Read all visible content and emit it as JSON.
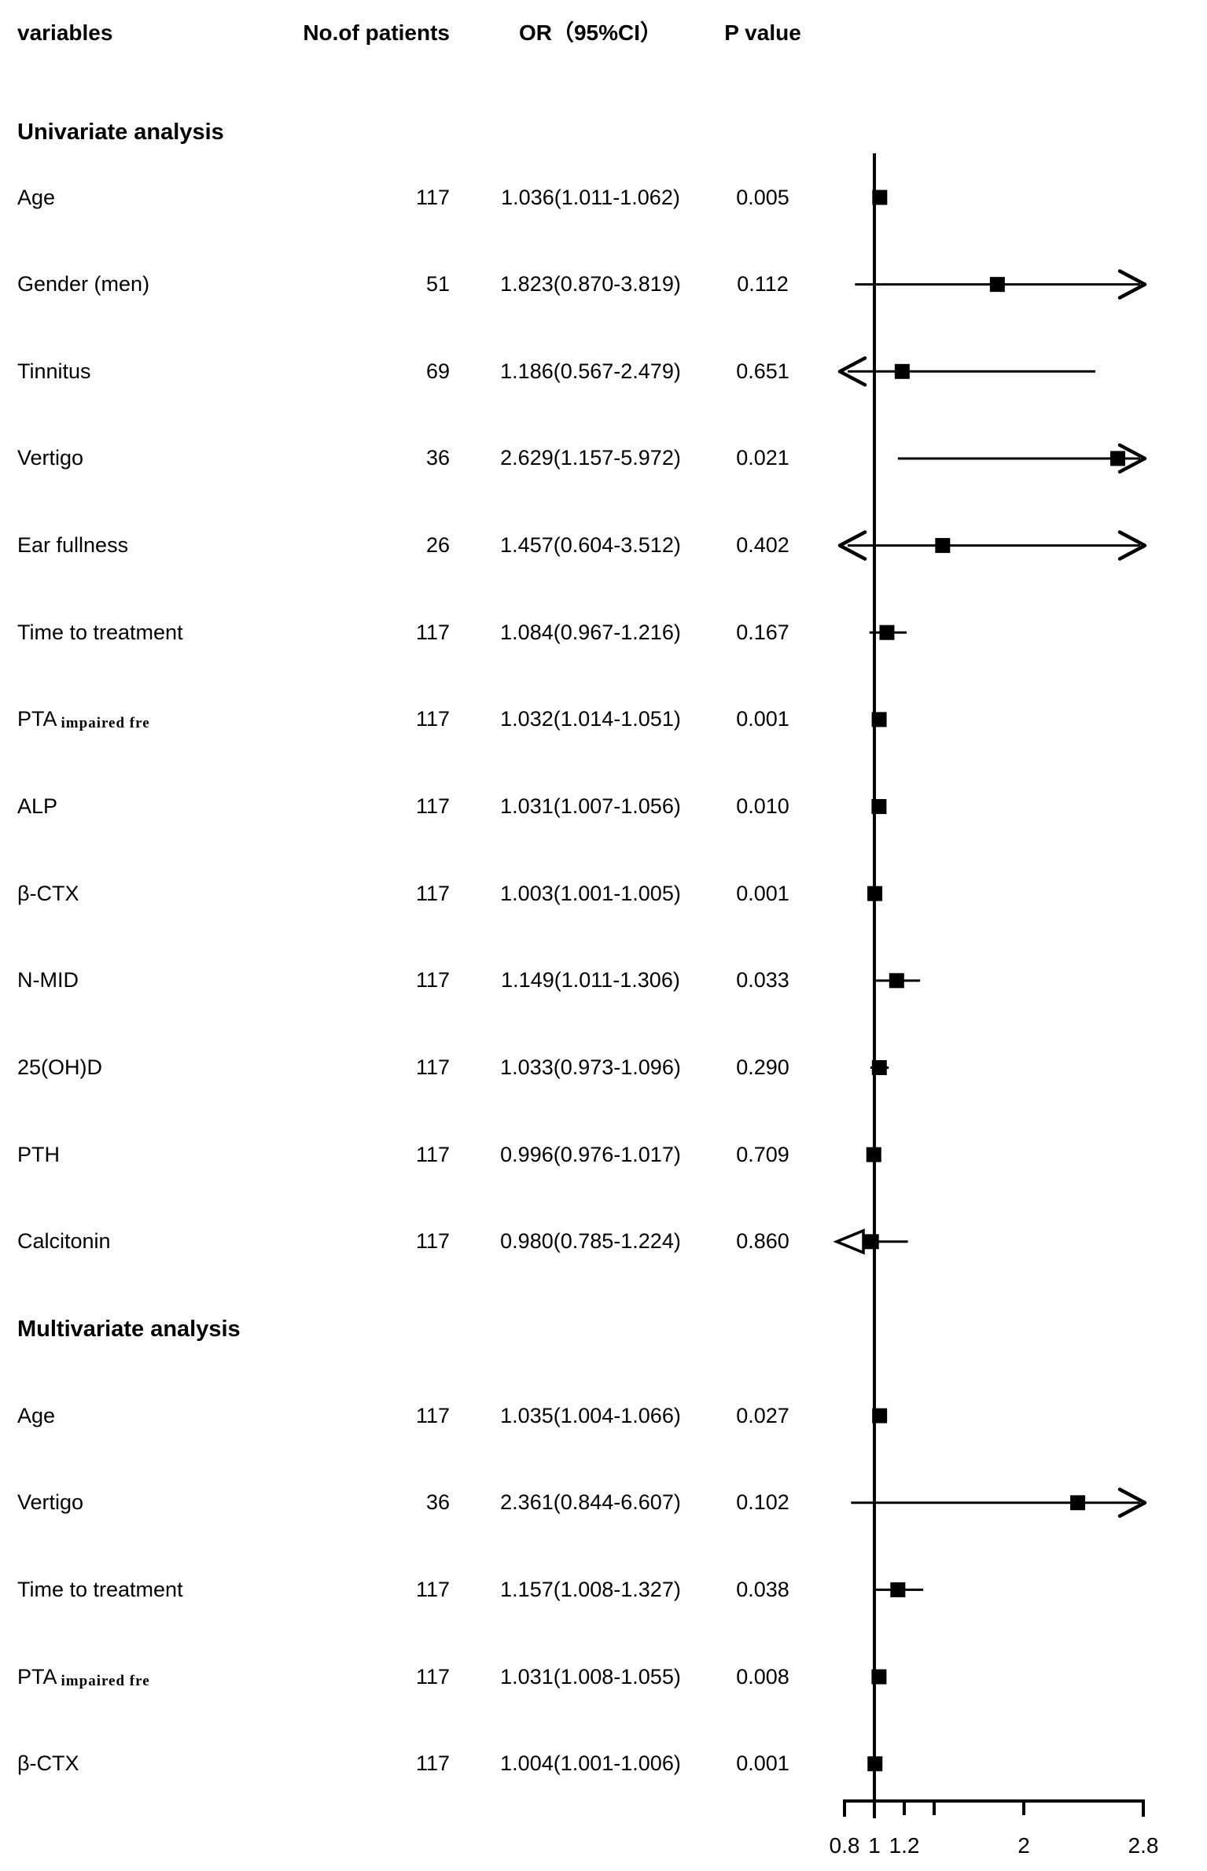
{
  "header": {
    "variables": "variables",
    "patients": "No.of patients",
    "or_ci": "OR（95%CI）",
    "p_value": "P value"
  },
  "sections": [
    {
      "title": "Univariate analysis",
      "rows": [
        {
          "variable": "Age",
          "variable_sub": "",
          "patients": "117",
          "or_ci": "1.036(1.011-1.062)",
          "p": "0.005"
        },
        {
          "variable": "Gender (men)",
          "variable_sub": "",
          "patients": "51",
          "or_ci": "1.823(0.870-3.819)",
          "p": "0.112"
        },
        {
          "variable": "Tinnitus",
          "variable_sub": "",
          "patients": "69",
          "or_ci": "1.186(0.567-2.479)",
          "p": "0.651"
        },
        {
          "variable": "Vertigo",
          "variable_sub": "",
          "patients": "36",
          "or_ci": "2.629(1.157-5.972)",
          "p": "0.021"
        },
        {
          "variable": "Ear fullness",
          "variable_sub": "",
          "patients": "26",
          "or_ci": "1.457(0.604-3.512)",
          "p": "0.402"
        },
        {
          "variable": "Time to treatment",
          "variable_sub": "",
          "patients": "117",
          "or_ci": "1.084(0.967-1.216)",
          "p": "0.167"
        },
        {
          "variable": "PTA",
          "variable_sub": "impaired fre",
          "patients": "117",
          "or_ci": "1.032(1.014-1.051)",
          "p": "0.001"
        },
        {
          "variable": "ALP",
          "variable_sub": "",
          "patients": "117",
          "or_ci": "1.031(1.007-1.056)",
          "p": "0.010"
        },
        {
          "variable": "β-CTX",
          "variable_sub": "",
          "patients": "117",
          "or_ci": "1.003(1.001-1.005)",
          "p": "0.001"
        },
        {
          "variable": "N-MID",
          "variable_sub": "",
          "patients": "117",
          "or_ci": "1.149(1.011-1.306)",
          "p": "0.033"
        },
        {
          "variable": "25(OH)D",
          "variable_sub": "",
          "patients": "117",
          "or_ci": "1.033(0.973-1.096)",
          "p": "0.290"
        },
        {
          "variable": "PTH",
          "variable_sub": "",
          "patients": "117",
          "or_ci": "0.996(0.976-1.017)",
          "p": "0.709"
        },
        {
          "variable": "Calcitonin",
          "variable_sub": "",
          "patients": "117",
          "or_ci": "0.980(0.785-1.224)",
          "p": "0.860"
        }
      ]
    },
    {
      "title": "Multivariate analysis",
      "rows": [
        {
          "variable": "Age",
          "variable_sub": "",
          "patients": "117",
          "or_ci": "1.035(1.004-1.066)",
          "p": "0.027"
        },
        {
          "variable": "Vertigo",
          "variable_sub": "",
          "patients": "36",
          "or_ci": "2.361(0.844-6.607)",
          "p": "0.102"
        },
        {
          "variable": "Time to treatment",
          "variable_sub": "",
          "patients": "117",
          "or_ci": "1.157(1.008-1.327)",
          "p": "0.038"
        },
        {
          "variable": "PTA",
          "variable_sub": "impaired fre",
          "patients": "117",
          "or_ci": "1.031(1.008-1.055)",
          "p": "0.008"
        },
        {
          "variable": "β-CTX",
          "variable_sub": "",
          "patients": "117",
          "or_ci": "1.004(1.001-1.006)",
          "p": "0.001"
        }
      ]
    }
  ],
  "chart_data": {
    "type": "forest",
    "title": "",
    "xlabel": "",
    "x_range": [
      0.8,
      2.8
    ],
    "reference_line": 1.0,
    "x_ticks": [
      {
        "v": 0.8,
        "label": "0.8"
      },
      {
        "v": 1.0,
        "label": "1"
      },
      {
        "v": 1.2,
        "label": "1.2"
      },
      {
        "v": 1.4,
        "label": ""
      },
      {
        "v": 2.0,
        "label": "2"
      },
      {
        "v": 2.8,
        "label": "2.8"
      }
    ],
    "rows": [
      {
        "variable": "Age",
        "group": "univariate",
        "or": 1.036,
        "lo": 1.011,
        "hi": 1.062
      },
      {
        "variable": "Gender (men)",
        "group": "univariate",
        "or": 1.823,
        "lo": 0.87,
        "hi": 3.819
      },
      {
        "variable": "Tinnitus",
        "group": "univariate",
        "or": 1.186,
        "lo": 0.567,
        "hi": 2.479
      },
      {
        "variable": "Vertigo",
        "group": "univariate",
        "or": 2.629,
        "lo": 1.157,
        "hi": 5.972
      },
      {
        "variable": "Ear fullness",
        "group": "univariate",
        "or": 1.457,
        "lo": 0.604,
        "hi": 3.512
      },
      {
        "variable": "Time to treatment",
        "group": "univariate",
        "or": 1.084,
        "lo": 0.967,
        "hi": 1.216
      },
      {
        "variable": "PTA impaired fre",
        "group": "univariate",
        "or": 1.032,
        "lo": 1.014,
        "hi": 1.051
      },
      {
        "variable": "ALP",
        "group": "univariate",
        "or": 1.031,
        "lo": 1.007,
        "hi": 1.056
      },
      {
        "variable": "β-CTX",
        "group": "univariate",
        "or": 1.003,
        "lo": 1.001,
        "hi": 1.005
      },
      {
        "variable": "N-MID",
        "group": "univariate",
        "or": 1.149,
        "lo": 1.011,
        "hi": 1.306
      },
      {
        "variable": "25(OH)D",
        "group": "univariate",
        "or": 1.033,
        "lo": 0.973,
        "hi": 1.096
      },
      {
        "variable": "PTH",
        "group": "univariate",
        "or": 0.996,
        "lo": 0.976,
        "hi": 1.017
      },
      {
        "variable": "Calcitonin",
        "group": "univariate",
        "or": 0.98,
        "lo": 0.785,
        "hi": 1.224,
        "hollow_left_arrow": true
      },
      {
        "variable": "Age",
        "group": "multivariate",
        "or": 1.035,
        "lo": 1.004,
        "hi": 1.066
      },
      {
        "variable": "Vertigo",
        "group": "multivariate",
        "or": 2.361,
        "lo": 0.844,
        "hi": 6.607
      },
      {
        "variable": "Time to treatment",
        "group": "multivariate",
        "or": 1.157,
        "lo": 1.008,
        "hi": 1.327
      },
      {
        "variable": "PTA impaired fre",
        "group": "multivariate",
        "or": 1.031,
        "lo": 1.008,
        "hi": 1.055
      },
      {
        "variable": "β-CTX",
        "group": "multivariate",
        "or": 1.004,
        "lo": 1.001,
        "hi": 1.006
      }
    ],
    "marker": "filled-square",
    "grid": false,
    "legend": false
  },
  "colors": {
    "ink": "#000000",
    "background": "#ffffff"
  }
}
